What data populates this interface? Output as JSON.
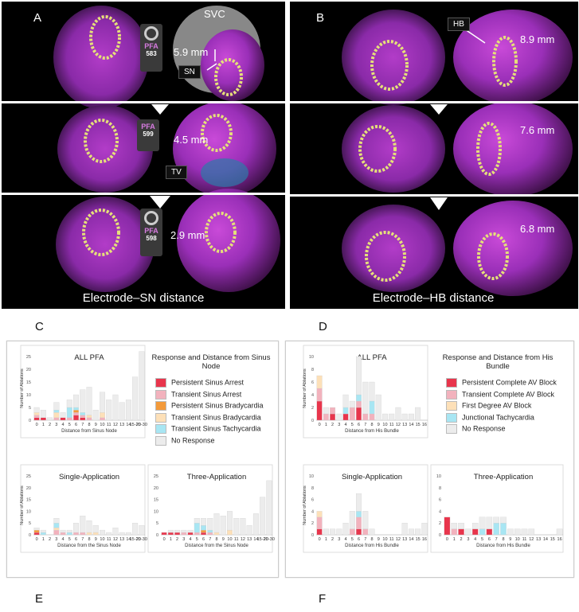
{
  "labels": {
    "A": "A",
    "B": "B",
    "C": "C",
    "D": "D",
    "E": "E",
    "F": "F"
  },
  "panelA": {
    "caption": "Electrode–SN distance",
    "svc": "SVC",
    "sn": "SN",
    "tv": "TV",
    "rows": [
      {
        "mm": "5.9 mm",
        "pfa": "PFA",
        "num": "583"
      },
      {
        "mm": "4.5 mm",
        "pfa": "PFA",
        "num": "599"
      },
      {
        "mm": "2.9 mm",
        "pfa": "PFA",
        "num": "598"
      }
    ]
  },
  "panelB": {
    "caption": "Electrode–HB distance",
    "hb": "HB",
    "rows": [
      {
        "mm": "8.9 mm"
      },
      {
        "mm": "7.6 mm"
      },
      {
        "mm": "6.8 mm"
      }
    ]
  },
  "legendC": {
    "title": "Response and Distance from Sinus Node",
    "items": [
      {
        "label": "Persistent Sinus Arrest",
        "color": "#e8354c"
      },
      {
        "label": "Transient Sinus Arrest",
        "color": "#f2b2bd"
      },
      {
        "label": "Persistent Sinus Bradycardia",
        "color": "#f39a3a"
      },
      {
        "label": "Transient Sinus Bradycardia",
        "color": "#fde0b8"
      },
      {
        "label": "Transient Sinus Tachycardia",
        "color": "#a8e6f3"
      },
      {
        "label": "No Response",
        "color": "#ececec"
      }
    ]
  },
  "legendD": {
    "title": "Response and Distance from His Bundle",
    "items": [
      {
        "label": "Persistent Complete AV Block",
        "color": "#e8354c"
      },
      {
        "label": "Transient Complete AV Block",
        "color": "#f2b2bd"
      },
      {
        "label": "First Degree AV Block",
        "color": "#fde0b8"
      },
      {
        "label": "Junctional Tachycardia",
        "color": "#a8e6f3"
      },
      {
        "label": "No Response",
        "color": "#ececec"
      }
    ]
  },
  "chart_data": [
    {
      "type": "bar",
      "title": "ALL PFA",
      "xlabel": "Distance from  Sinus Node",
      "ylabel": "Number of Ablations",
      "categories": [
        "0",
        "1",
        "2",
        "3",
        "4",
        "5",
        "6",
        "7",
        "8",
        "9",
        "10",
        "11",
        "12",
        "13",
        "14",
        "15-20",
        "20-30"
      ],
      "ylim": [
        0,
        25
      ],
      "yticks": [
        0,
        5,
        10,
        15,
        20,
        25
      ],
      "series": [
        {
          "name": "Persistent Sinus Arrest",
          "values": [
            1,
            1,
            0,
            0,
            1,
            0,
            2,
            1,
            0,
            0,
            0,
            0,
            0,
            0,
            0,
            0,
            0
          ]
        },
        {
          "name": "Transient Sinus Arrest",
          "values": [
            1,
            0,
            0,
            1,
            0,
            1,
            1,
            1,
            1,
            0,
            1,
            0,
            0,
            0,
            0,
            0,
            0
          ]
        },
        {
          "name": "Persistent Sinus Bradycardia",
          "values": [
            0,
            0,
            0,
            0,
            0,
            0,
            1,
            0,
            0,
            0,
            0,
            0,
            0,
            0,
            0,
            0,
            0
          ]
        },
        {
          "name": "Transient Sinus Bradycardia",
          "values": [
            1,
            0,
            0,
            2,
            0,
            0,
            0,
            0,
            1,
            0,
            2,
            0,
            0,
            0,
            0,
            0,
            0
          ]
        },
        {
          "name": "Transient Sinus Tachycardia",
          "values": [
            0,
            0,
            0,
            1,
            0,
            4,
            1,
            1,
            0,
            0,
            0,
            0,
            0,
            0,
            0,
            0,
            0
          ]
        },
        {
          "name": "No Response",
          "values": [
            2,
            3,
            1,
            3,
            2,
            3,
            5,
            9,
            11,
            4,
            8,
            8,
            10,
            7,
            8,
            17,
            27
          ]
        }
      ]
    },
    {
      "type": "bar",
      "title": "ALL PFA",
      "xlabel": "Distance from His Bundle",
      "ylabel": "Number of Ablations",
      "categories": [
        "0",
        "1",
        "2",
        "3",
        "4",
        "5",
        "6",
        "7",
        "8",
        "9",
        "10",
        "11",
        "12",
        "13",
        "14",
        "15",
        "16"
      ],
      "ylim": [
        0,
        10
      ],
      "yticks": [
        0,
        2,
        4,
        6,
        8,
        10
      ],
      "series": [
        {
          "name": "Persistent Complete AV Block",
          "values": [
            3,
            0,
            1,
            0,
            1,
            0,
            2,
            0,
            0,
            0,
            0,
            0,
            0,
            0,
            0,
            0,
            0
          ]
        },
        {
          "name": "Transient Complete AV Block",
          "values": [
            2,
            1,
            1,
            0,
            0,
            2,
            1,
            1,
            1,
            0,
            0,
            0,
            0,
            0,
            0,
            0,
            0
          ]
        },
        {
          "name": "First Degree AV Block",
          "values": [
            2,
            0,
            0,
            0,
            0,
            0,
            0,
            0,
            0,
            0,
            0,
            0,
            0,
            0,
            0,
            0,
            0
          ]
        },
        {
          "name": "Junctional Tachycardia",
          "values": [
            0,
            0,
            0,
            0,
            1,
            0,
            1,
            0,
            2,
            0,
            0,
            0,
            0,
            0,
            0,
            0,
            0
          ]
        },
        {
          "name": "No Response",
          "values": [
            0,
            1,
            0,
            1,
            2,
            1,
            6,
            5,
            3,
            4,
            1,
            1,
            2,
            1,
            1,
            2,
            0
          ]
        }
      ]
    },
    {
      "type": "bar",
      "title": "Single-Application",
      "xlabel": "Distance from the Sinus Node",
      "ylabel": "Number of Ablations",
      "categories": [
        "0",
        "1",
        "2",
        "3",
        "4",
        "5",
        "6",
        "7",
        "8",
        "9",
        "10",
        "11",
        "12",
        "13",
        "14",
        "15-20",
        "20-30"
      ],
      "ylim": [
        0,
        25
      ],
      "yticks": [
        0,
        5,
        10,
        15,
        20,
        25
      ],
      "series": [
        {
          "name": "Persistent Sinus Arrest",
          "values": [
            1,
            0,
            0,
            0,
            0,
            0,
            0,
            0,
            0,
            0,
            0,
            0,
            0,
            0,
            0,
            0,
            0
          ]
        },
        {
          "name": "Transient Sinus Arrest",
          "values": [
            0,
            0,
            0,
            2,
            1,
            0,
            1,
            1,
            0,
            0,
            0,
            0,
            0,
            0,
            0,
            0,
            0
          ]
        },
        {
          "name": "Persistent Sinus Bradycardia",
          "values": [
            1,
            0,
            0,
            0,
            0,
            0,
            0,
            0,
            0,
            0,
            0,
            0,
            0,
            0,
            0,
            0,
            0
          ]
        },
        {
          "name": "Transient Sinus Bradycardia",
          "values": [
            0,
            0,
            0,
            1,
            0,
            0,
            0,
            0,
            1,
            1,
            0,
            0,
            0,
            0,
            0,
            0,
            0
          ]
        },
        {
          "name": "Transient Sinus Tachycardia",
          "values": [
            0,
            1,
            0,
            2,
            0,
            1,
            0,
            0,
            0,
            0,
            0,
            0,
            0,
            0,
            0,
            0,
            0
          ]
        },
        {
          "name": "No Response",
          "values": [
            1,
            1,
            0,
            2,
            1,
            1,
            4,
            7,
            5,
            3,
            2,
            1,
            3,
            1,
            1,
            5,
            4
          ]
        }
      ]
    },
    {
      "type": "bar",
      "title": "Three-Application",
      "xlabel": "Distance from the Sinus Node",
      "ylabel": "",
      "categories": [
        "0",
        "1",
        "2",
        "3",
        "4",
        "5",
        "6",
        "7",
        "8",
        "9",
        "10",
        "11",
        "12",
        "13",
        "14",
        "15-20",
        "20-30"
      ],
      "ylim": [
        0,
        25
      ],
      "yticks": [
        0,
        5,
        10,
        15,
        20,
        25
      ],
      "series": [
        {
          "name": "Persistent Sinus Arrest",
          "values": [
            1,
            1,
            1,
            0,
            1,
            0,
            1,
            0,
            0,
            0,
            0,
            0,
            0,
            0,
            0,
            0,
            0
          ]
        },
        {
          "name": "Transient Sinus Arrest",
          "values": [
            0,
            0,
            0,
            1,
            0,
            1,
            0,
            1,
            0,
            0,
            0,
            0,
            0,
            0,
            0,
            0,
            0
          ]
        },
        {
          "name": "Persistent Sinus Bradycardia",
          "values": [
            0,
            0,
            0,
            0,
            0,
            0,
            1,
            0,
            0,
            0,
            0,
            0,
            0,
            0,
            0,
            0,
            0
          ]
        },
        {
          "name": "Transient Sinus Bradycardia",
          "values": [
            0,
            0,
            0,
            0,
            0,
            0,
            0,
            0,
            1,
            0,
            2,
            0,
            0,
            0,
            0,
            0,
            0
          ]
        },
        {
          "name": "Transient Sinus Tachycardia",
          "values": [
            0,
            0,
            0,
            0,
            0,
            4,
            2,
            1,
            0,
            0,
            0,
            0,
            0,
            0,
            0,
            0,
            0
          ]
        },
        {
          "name": "No Response",
          "values": [
            0,
            1,
            1,
            1,
            1,
            2,
            3,
            5,
            8,
            8,
            8,
            7,
            7,
            4,
            9,
            16,
            23
          ]
        }
      ]
    },
    {
      "type": "bar",
      "title": "Single-Application",
      "xlabel": "Distance from His Bundle",
      "ylabel": "Number of Ablations",
      "categories": [
        "0",
        "1",
        "2",
        "3",
        "4",
        "5",
        "6",
        "7",
        "8",
        "9",
        "10",
        "11",
        "12",
        "13",
        "14",
        "15",
        "16"
      ],
      "ylim": [
        0,
        10
      ],
      "yticks": [
        0,
        2,
        4,
        6,
        8,
        10
      ],
      "series": [
        {
          "name": "Persistent Complete AV Block",
          "values": [
            1,
            0,
            0,
            0,
            0,
            0,
            1,
            0,
            0,
            0,
            0,
            0,
            0,
            0,
            0,
            0,
            0
          ]
        },
        {
          "name": "Transient Complete AV Block",
          "values": [
            2,
            0,
            0,
            0,
            0,
            1,
            2,
            1,
            0,
            0,
            0,
            0,
            0,
            0,
            0,
            0,
            0
          ]
        },
        {
          "name": "First Degree AV Block",
          "values": [
            1,
            0,
            0,
            0,
            0,
            0,
            0,
            0,
            0,
            0,
            0,
            0,
            0,
            0,
            0,
            0,
            0
          ]
        },
        {
          "name": "Junctional Tachycardia",
          "values": [
            0,
            0,
            0,
            0,
            0,
            0,
            1,
            0,
            0,
            0,
            0,
            0,
            0,
            0,
            0,
            0,
            0
          ]
        },
        {
          "name": "No Response",
          "values": [
            0,
            1,
            1,
            1,
            2,
            3,
            3,
            3,
            1,
            0,
            0,
            0,
            0,
            2,
            1,
            1,
            2
          ]
        }
      ]
    },
    {
      "type": "bar",
      "title": "Three-Application",
      "xlabel": "Distance from His Bundle",
      "ylabel": "",
      "categories": [
        "0",
        "1",
        "2",
        "3",
        "4",
        "5",
        "6",
        "7",
        "8",
        "9",
        "10",
        "11",
        "12",
        "13",
        "14",
        "15",
        "16"
      ],
      "ylim": [
        0,
        10
      ],
      "yticks": [
        0,
        2,
        4,
        6,
        8,
        10
      ],
      "series": [
        {
          "name": "Persistent Complete AV Block",
          "values": [
            3,
            0,
            1,
            0,
            1,
            0,
            1,
            0,
            0,
            0,
            0,
            0,
            0,
            0,
            0,
            0,
            0
          ]
        },
        {
          "name": "Transient Complete AV Block",
          "values": [
            0,
            1,
            0,
            0,
            0,
            0,
            0,
            0,
            0,
            0,
            0,
            0,
            0,
            0,
            0,
            0,
            0
          ]
        },
        {
          "name": "First Degree AV Block",
          "values": [
            0,
            0,
            0,
            0,
            0,
            0,
            0,
            0,
            0,
            0,
            0,
            0,
            0,
            0,
            0,
            0,
            0
          ]
        },
        {
          "name": "Junctional Tachycardia",
          "values": [
            0,
            0,
            0,
            0,
            0,
            1,
            0,
            2,
            2,
            0,
            0,
            0,
            0,
            0,
            0,
            0,
            0
          ]
        },
        {
          "name": "No Response",
          "values": [
            0,
            1,
            1,
            1,
            1,
            2,
            2,
            1,
            1,
            1,
            1,
            1,
            1,
            0,
            0,
            0,
            1
          ]
        }
      ]
    }
  ]
}
